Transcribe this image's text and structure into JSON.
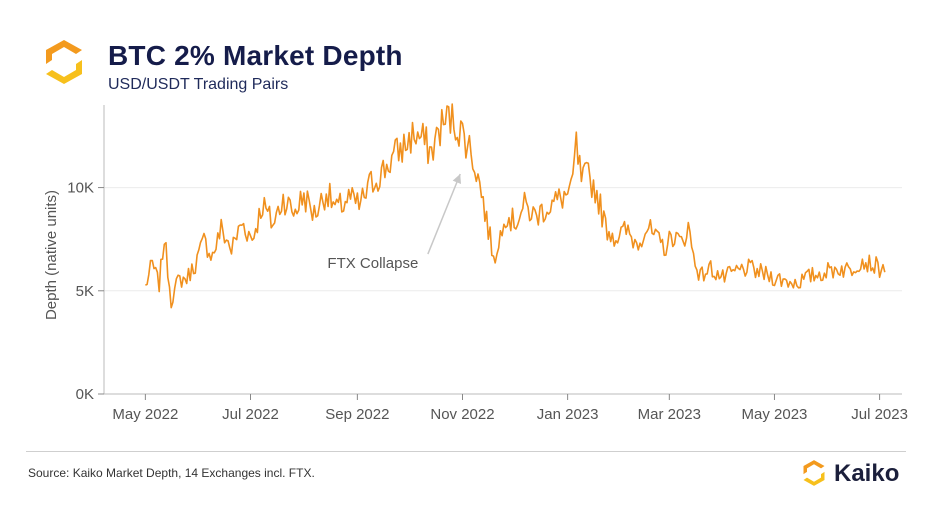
{
  "header": {
    "title": "BTC 2% Market Depth",
    "subtitle": "USD/USDT Trading Pairs",
    "logo_icon": "kaiko-hexagon-icon"
  },
  "footer": {
    "source": "Source: Kaiko Market Depth, 14 Exchanges incl. FTX.",
    "brand_name": "Kaiko",
    "brand_icon": "kaiko-hexagon-icon"
  },
  "colors": {
    "series": "#f0901e",
    "logo_orange": "#f39a1e",
    "logo_amber": "#f7c01c",
    "title_navy": "#151c4a",
    "axis_text": "#555555",
    "annotation_arrow": "#c8c8c8"
  },
  "chart_data": {
    "type": "line",
    "title": "BTC 2% Market Depth",
    "subtitle": "USD/USDT Trading Pairs",
    "ylabel": "Depth (native units)",
    "xlabel": "",
    "ylim": [
      0,
      14000
    ],
    "xlim": [
      "2022-04-07",
      "2023-07-14"
    ],
    "grid": "horizontal",
    "yticks": [
      {
        "value": 0,
        "label": "0K"
      },
      {
        "value": 5000,
        "label": "5K"
      },
      {
        "value": 10000,
        "label": "10K"
      }
    ],
    "xticks": [
      {
        "value": "2022-05-01",
        "label": "May 2022"
      },
      {
        "value": "2022-07-01",
        "label": "Jul 2022"
      },
      {
        "value": "2022-09-01",
        "label": "Sep 2022"
      },
      {
        "value": "2022-11-01",
        "label": "Nov 2022"
      },
      {
        "value": "2023-01-01",
        "label": "Jan 2023"
      },
      {
        "value": "2023-03-01",
        "label": "Mar 2023"
      },
      {
        "value": "2023-05-01",
        "label": "May 2023"
      },
      {
        "value": "2023-07-01",
        "label": "Jul 2023"
      }
    ],
    "series": [
      {
        "name": "",
        "color": "#f0901e",
        "points": [
          [
            "2022-05-01",
            5200
          ],
          [
            "2022-05-05",
            6300
          ],
          [
            "2022-05-09",
            5300
          ],
          [
            "2022-05-12",
            7600
          ],
          [
            "2022-05-16",
            4500
          ],
          [
            "2022-05-20",
            5500
          ],
          [
            "2022-05-25",
            5600
          ],
          [
            "2022-05-30",
            6300
          ],
          [
            "2022-06-04",
            7400
          ],
          [
            "2022-06-09",
            6700
          ],
          [
            "2022-06-14",
            8000
          ],
          [
            "2022-06-20",
            7000
          ],
          [
            "2022-06-26",
            8300
          ],
          [
            "2022-07-02",
            7500
          ],
          [
            "2022-07-08",
            9200
          ],
          [
            "2022-07-14",
            8200
          ],
          [
            "2022-07-20",
            9500
          ],
          [
            "2022-07-26",
            8800
          ],
          [
            "2022-08-01",
            9600
          ],
          [
            "2022-08-07",
            8700
          ],
          [
            "2022-08-14",
            9800
          ],
          [
            "2022-08-20",
            8900
          ],
          [
            "2022-08-27",
            9500
          ],
          [
            "2022-09-02",
            9100
          ],
          [
            "2022-09-09",
            10200
          ],
          [
            "2022-09-16",
            10800
          ],
          [
            "2022-09-22",
            11500
          ],
          [
            "2022-09-28",
            12000
          ],
          [
            "2022-10-04",
            12600
          ],
          [
            "2022-10-09",
            12300
          ],
          [
            "2022-10-14",
            11700
          ],
          [
            "2022-10-19",
            12900
          ],
          [
            "2022-10-24",
            13400
          ],
          [
            "2022-10-28",
            13100
          ],
          [
            "2022-11-01",
            12600
          ],
          [
            "2022-11-04",
            12200
          ],
          [
            "2022-11-08",
            11200
          ],
          [
            "2022-11-12",
            9800
          ],
          [
            "2022-11-15",
            8400
          ],
          [
            "2022-11-18",
            7100
          ],
          [
            "2022-11-21",
            6600
          ],
          [
            "2022-11-25",
            8800
          ],
          [
            "2022-12-01",
            8300
          ],
          [
            "2022-12-07",
            9100
          ],
          [
            "2022-12-13",
            8600
          ],
          [
            "2022-12-19",
            9000
          ],
          [
            "2022-12-25",
            9300
          ],
          [
            "2022-12-30",
            9600
          ],
          [
            "2023-01-03",
            9700
          ],
          [
            "2023-01-06",
            12000
          ],
          [
            "2023-01-09",
            10300
          ],
          [
            "2023-01-13",
            10600
          ],
          [
            "2023-01-18",
            9700
          ],
          [
            "2023-01-23",
            8100
          ],
          [
            "2023-01-29",
            7600
          ],
          [
            "2023-02-04",
            7900
          ],
          [
            "2023-02-10",
            7300
          ],
          [
            "2023-02-16",
            8100
          ],
          [
            "2023-02-22",
            7400
          ],
          [
            "2023-02-27",
            7100
          ],
          [
            "2023-03-03",
            7700
          ],
          [
            "2023-03-08",
            7300
          ],
          [
            "2023-03-12",
            8100
          ],
          [
            "2023-03-15",
            6700
          ],
          [
            "2023-03-19",
            5700
          ],
          [
            "2023-03-25",
            6100
          ],
          [
            "2023-04-01",
            5600
          ],
          [
            "2023-04-08",
            5900
          ],
          [
            "2023-04-15",
            6100
          ],
          [
            "2023-04-22",
            5900
          ],
          [
            "2023-04-29",
            5700
          ],
          [
            "2023-05-06",
            5500
          ],
          [
            "2023-05-14",
            5400
          ],
          [
            "2023-05-22",
            5700
          ],
          [
            "2023-05-30",
            5900
          ],
          [
            "2023-06-07",
            6100
          ],
          [
            "2023-06-14",
            6000
          ],
          [
            "2023-06-20",
            6500
          ],
          [
            "2023-06-26",
            6300
          ],
          [
            "2023-07-01",
            6100
          ],
          [
            "2023-07-04",
            5900
          ]
        ]
      }
    ],
    "annotations": [
      {
        "text": "FTX Collapse",
        "target": [
          "2022-11-02",
          10900
        ],
        "label_at": [
          "2022-09-10",
          6100
        ]
      }
    ]
  }
}
